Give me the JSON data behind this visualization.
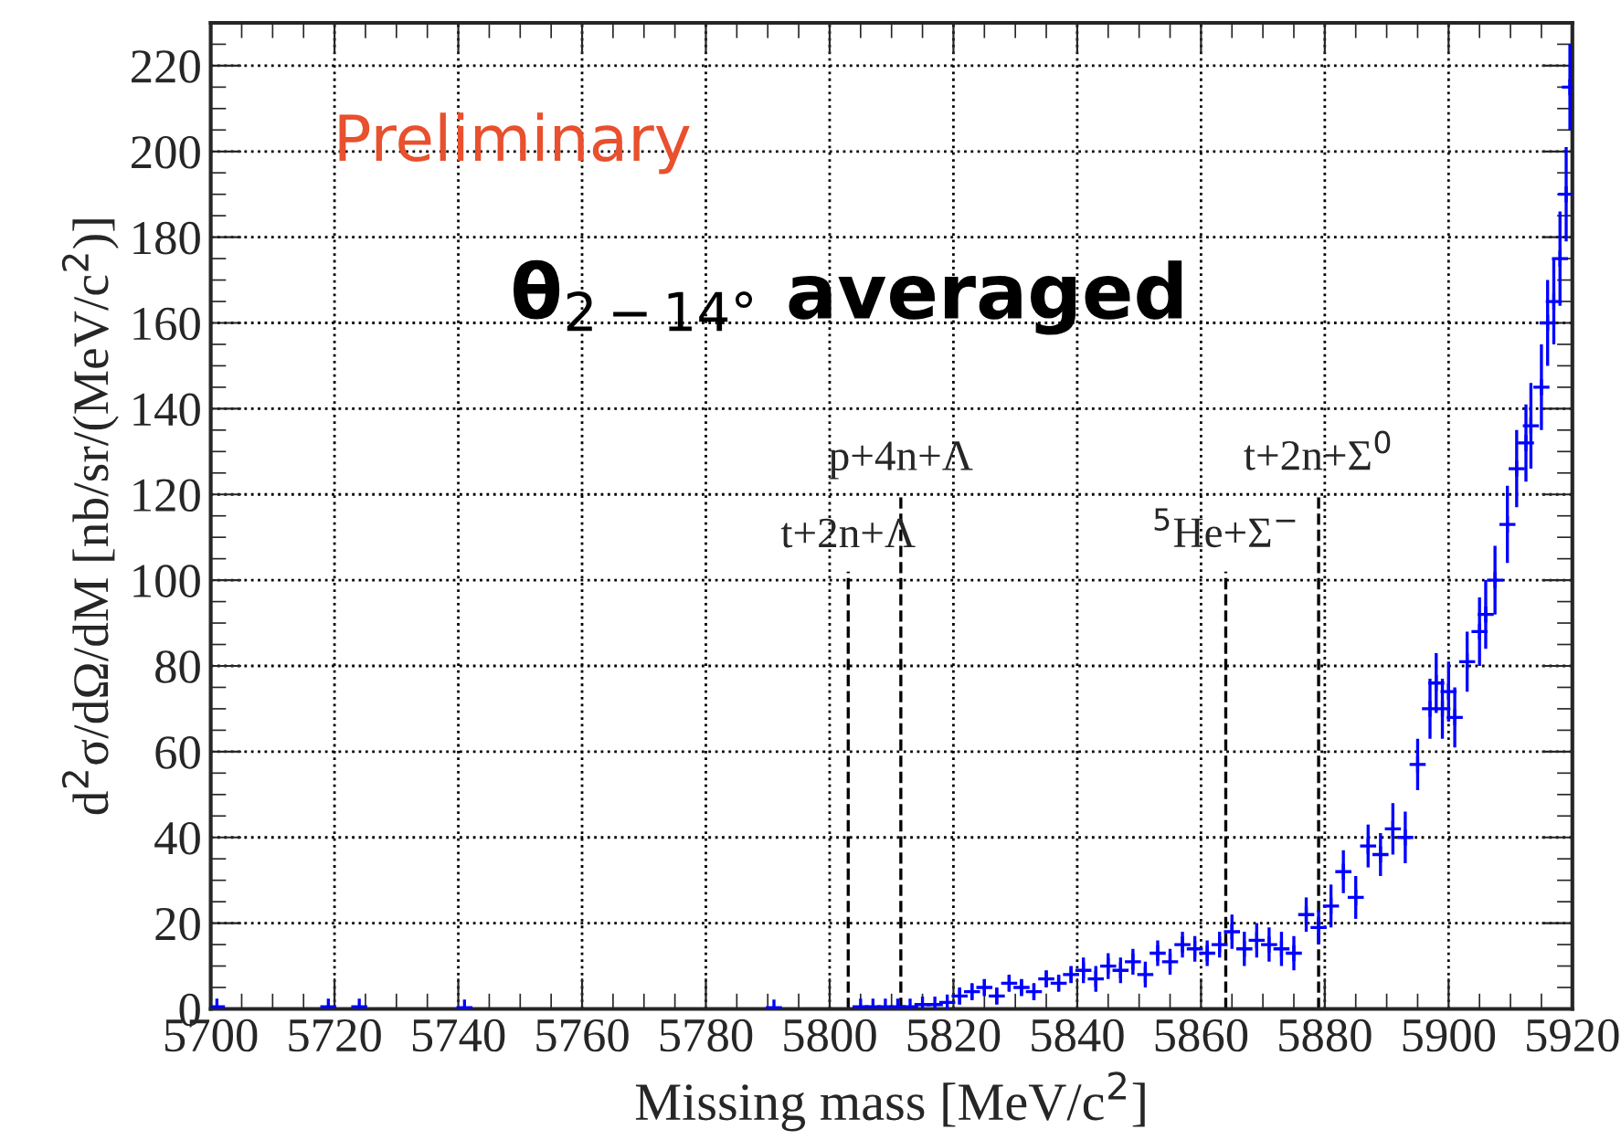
{
  "chart_data": {
    "type": "scatter",
    "xlabel": "Missing mass [MeV/c$^{2}$]",
    "ylabel": "d$^{2}$σ/dΩ/dM [nb/sr/(MeV/c$^{2}$)]",
    "xlim": [
      5700,
      5920
    ],
    "xticks": [
      5700,
      5720,
      5740,
      5760,
      5780,
      5800,
      5820,
      5840,
      5860,
      5880,
      5900,
      5920
    ],
    "ylim": [
      0,
      230
    ],
    "yticks": [
      0,
      20,
      40,
      60,
      80,
      100,
      120,
      140,
      160,
      180,
      200,
      220
    ],
    "grid": true,
    "marker": "cross",
    "series": [
      {
        "color": "#0000ff",
        "x": [
          5701,
          5719,
          5724,
          5741,
          5791,
          5805,
          5807,
          5809,
          5811,
          5813,
          5815,
          5817,
          5819,
          5821,
          5823,
          5825,
          5827,
          5829,
          5831,
          5833,
          5835,
          5837,
          5839,
          5841,
          5843,
          5845,
          5847,
          5849,
          5851,
          5853,
          5855,
          5857,
          5859,
          5861,
          5863,
          5865,
          5867,
          5869,
          5871,
          5873,
          5875,
          5877,
          5879,
          5881,
          5883,
          5885,
          5887,
          5889,
          5891,
          5893,
          5895,
          5897,
          5898,
          5899,
          5900,
          5901,
          5903,
          5905,
          5906,
          5907.5,
          5909.5,
          5911,
          5912.5,
          5913.3,
          5915,
          5916,
          5917,
          5918,
          5919,
          5919.6
        ],
        "values": [
          0.5,
          0.5,
          0.5,
          0.3,
          0.3,
          0.5,
          0.5,
          0.5,
          0.5,
          0.5,
          1,
          1,
          1.5,
          3,
          4,
          5,
          3,
          6,
          5,
          4,
          7,
          6,
          8,
          9,
          7,
          10,
          9,
          11,
          8,
          13,
          11,
          15,
          14,
          13,
          15,
          18,
          14,
          16,
          15,
          14,
          13,
          22,
          19,
          24,
          32,
          26,
          38,
          36,
          42,
          40,
          57,
          70,
          76,
          70,
          74,
          68,
          81,
          88,
          92,
          100,
          113,
          126,
          132,
          136,
          145,
          160,
          165,
          175,
          190,
          215
        ],
        "errors": [
          null,
          null,
          null,
          null,
          null,
          null,
          null,
          null,
          null,
          null,
          null,
          null,
          null,
          2,
          2,
          2,
          2,
          2,
          2,
          2,
          2,
          2,
          2,
          3,
          3,
          3,
          3,
          3,
          3,
          3,
          3,
          3,
          3,
          3,
          3,
          4,
          4,
          4,
          4,
          4,
          4,
          4,
          4,
          5,
          5,
          5,
          5,
          5,
          6,
          6,
          6,
          7,
          7,
          7,
          7,
          7,
          7,
          8,
          8,
          8,
          9,
          9,
          9,
          10,
          10,
          10,
          10,
          11,
          11,
          10
        ]
      },
      {
        "type": "line",
        "color": "#000000",
        "line_style": "dashed",
        "marker": "none",
        "x": [
          5803,
          5803
        ],
        "values": [
          0,
          102
        ]
      },
      {
        "type": "line",
        "color": "#000000",
        "line_style": "dashed",
        "marker": "none",
        "x": [
          5811.5,
          5811.5
        ],
        "values": [
          0,
          120
        ]
      },
      {
        "type": "line",
        "color": "#000000",
        "line_style": "dashed",
        "marker": "none",
        "x": [
          5864,
          5864
        ],
        "values": [
          0,
          102
        ]
      },
      {
        "type": "line",
        "color": "#000000",
        "line_style": "dashed",
        "marker": "none",
        "x": [
          5879,
          5879
        ],
        "values": [
          0,
          120
        ]
      }
    ],
    "annotations": [
      "Preliminary",
      "θ$_{2−14°}$ averaged",
      {
        "text": "t+2n+Λ",
        "x": 5803,
        "y": 102
      },
      {
        "text": "p+4n+Λ",
        "x": 5811.5,
        "y": 120
      },
      {
        "text": "$^{5}$He+Σ$^{−}$",
        "x": 5864,
        "y": 102
      },
      {
        "text": "t+2n+Σ$^{0}$",
        "x": 5879,
        "y": 120
      }
    ]
  }
}
